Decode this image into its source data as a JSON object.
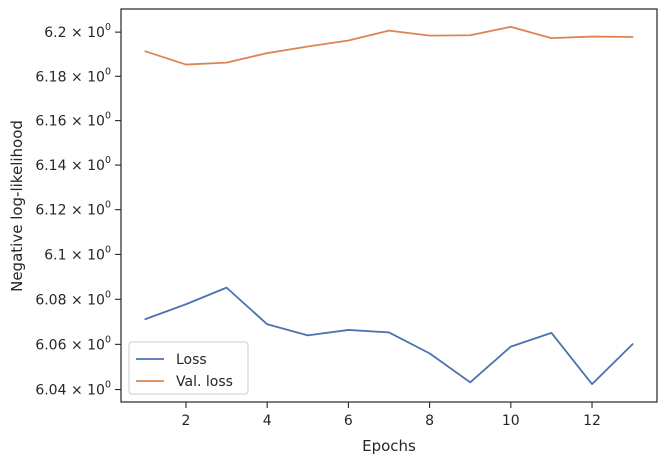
{
  "chart_data": {
    "type": "line",
    "title": "",
    "xlabel": "Epochs",
    "ylabel": "Negative log-likelihood",
    "xlim": [
      0.4,
      13.6
    ],
    "ylim": [
      6.0345,
      6.2105
    ],
    "yscale": "log",
    "grid": false,
    "legend_position": "lower-left",
    "x": [
      1,
      2,
      3,
      4,
      5,
      6,
      7,
      8,
      9,
      10,
      11,
      12,
      13
    ],
    "x_ticks": [
      2,
      4,
      6,
      8,
      10,
      12
    ],
    "x_tick_labels": [
      "2",
      "4",
      "6",
      "8",
      "10",
      "12"
    ],
    "y_ticks": [
      6.04,
      6.06,
      6.08,
      6.1,
      6.12,
      6.14,
      6.16,
      6.18,
      6.2
    ],
    "y_tick_labels": [
      "6.04 × 10",
      "6.06 × 10",
      "6.08 × 10",
      "6.1 × 10",
      "6.12 × 10",
      "6.14 × 10",
      "6.16 × 10",
      "6.18 × 10",
      "6.2 × 10"
    ],
    "y_tick_exponent": "0",
    "series": [
      {
        "name": "Loss",
        "color": "#4c72b0",
        "values": [
          6.0712,
          6.0778,
          6.0852,
          6.0689,
          6.064,
          6.0664,
          6.0653,
          6.056,
          6.0432,
          6.059,
          6.0651,
          6.0424,
          6.0601
        ]
      },
      {
        "name": "Val. loss",
        "color": "#dd8452",
        "values": [
          6.1913,
          6.1853,
          6.1862,
          6.1905,
          6.1935,
          6.1962,
          6.2007,
          6.1984,
          6.1986,
          6.2024,
          6.1973,
          6.198,
          6.1978
        ]
      }
    ]
  }
}
